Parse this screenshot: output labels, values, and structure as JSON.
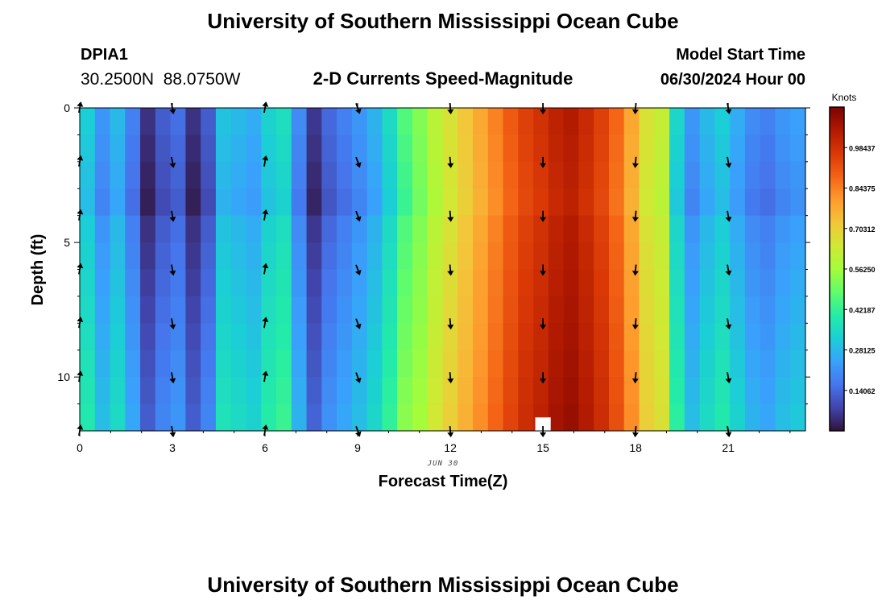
{
  "page": {
    "title": "University of Southern Mississippi Ocean Cube",
    "title_repeat": "University of Southern Mississippi Ocean Cube"
  },
  "station": {
    "id": "DPIA1",
    "coords": "30.2500N  88.0750W"
  },
  "model": {
    "start_label": "Model Start Time",
    "start_value": "06/30/2024 Hour 00"
  },
  "chart_data": {
    "type": "heatmap",
    "title": "2-D Currents Speed-Magnitude",
    "xlabel": "Forecast Time(Z)",
    "ylabel": "Depth (ft)",
    "date_label": "JUN 30",
    "x_ticks": [
      0,
      3,
      6,
      9,
      12,
      15,
      18,
      21
    ],
    "x_tick_labels": [
      "0",
      "3",
      "6",
      "9",
      "12",
      "15",
      "18",
      "21"
    ],
    "y_ticks": [
      0,
      5,
      10
    ],
    "y_tick_labels": [
      "0",
      "5",
      "10"
    ],
    "xlim": [
      0,
      23.5
    ],
    "ylim": [
      0,
      12
    ],
    "colorbar": {
      "unit_label": "Knots",
      "range": [
        0,
        1.125
      ],
      "tick_values": [
        0.140625,
        0.28125,
        0.421875,
        0.5625,
        0.703125,
        0.84375,
        0.984375
      ],
      "tick_labels": [
        "0.14062",
        "0.28125",
        "0.42187",
        "0.56250",
        "0.70312",
        "0.84375",
        "0.98437"
      ],
      "stops": [
        "#30123b",
        "#4145ab",
        "#4675ed",
        "#39a2fc",
        "#1bcfd4",
        "#24eca6",
        "#61fc6c",
        "#a4fc3b",
        "#d1e834",
        "#f3c63a",
        "#fe9b2d",
        "#f36315",
        "#d93806",
        "#b11901",
        "#7a0402"
      ]
    },
    "column_speeds": [
      0.32,
      0.22,
      0.28,
      0.18,
      0.05,
      0.12,
      0.15,
      0.05,
      0.12,
      0.3,
      0.28,
      0.26,
      0.33,
      0.36,
      0.2,
      0.06,
      0.14,
      0.18,
      0.22,
      0.27,
      0.35,
      0.46,
      0.52,
      0.6,
      0.66,
      0.72,
      0.78,
      0.84,
      0.9,
      0.95,
      0.98,
      1.02,
      1.04,
      1.0,
      0.95,
      0.88,
      0.78,
      0.66,
      0.62,
      0.34,
      0.22,
      0.28,
      0.32,
      0.26,
      0.2,
      0.18,
      0.22,
      0.24
    ],
    "depth_gradient": [
      0.0,
      -0.01,
      -0.02,
      -0.03,
      0.0,
      0.01,
      0.02,
      0.03,
      0.04,
      0.05,
      0.06,
      0.07
    ],
    "arrow_times": [
      0,
      3,
      6,
      9,
      12,
      15,
      18,
      21
    ],
    "arrow_depths": [
      0,
      2,
      4,
      6,
      8,
      10,
      12
    ],
    "arrow_directions_deg": [
      10,
      170,
      10,
      160,
      175,
      180,
      185,
      170
    ],
    "missing_cells": [
      {
        "time": 15,
        "depth_from": 11.5,
        "depth_to": 12
      }
    ]
  }
}
